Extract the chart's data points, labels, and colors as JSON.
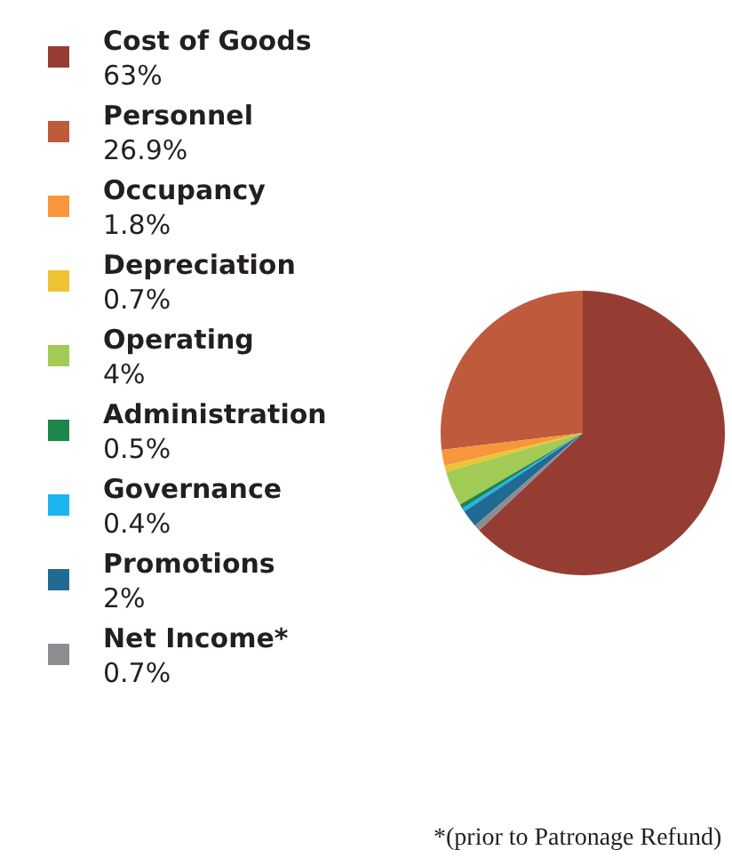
{
  "chart_data": {
    "type": "pie",
    "categories": [
      "Cost of Goods",
      "Personnel",
      "Occupancy",
      "Depreciation",
      "Operating",
      "Administration",
      "Governance",
      "Promotions",
      "Net Income*"
    ],
    "values": [
      63,
      26.9,
      1.8,
      0.7,
      4,
      0.5,
      0.4,
      2,
      0.7
    ],
    "value_labels": [
      "63%",
      "26.9%",
      "1.8%",
      "0.7%",
      "4%",
      "0.5%",
      "0.4%",
      "2%",
      "0.7%"
    ],
    "colors": [
      "#963d33",
      "#bf5a3d",
      "#f7963a",
      "#edc334",
      "#a2cb55",
      "#1d864b",
      "#1bb5ef",
      "#216a94",
      "#8c8d91"
    ],
    "legend": "left",
    "annotations": [
      "*(prior to Patronage Refund)"
    ]
  }
}
